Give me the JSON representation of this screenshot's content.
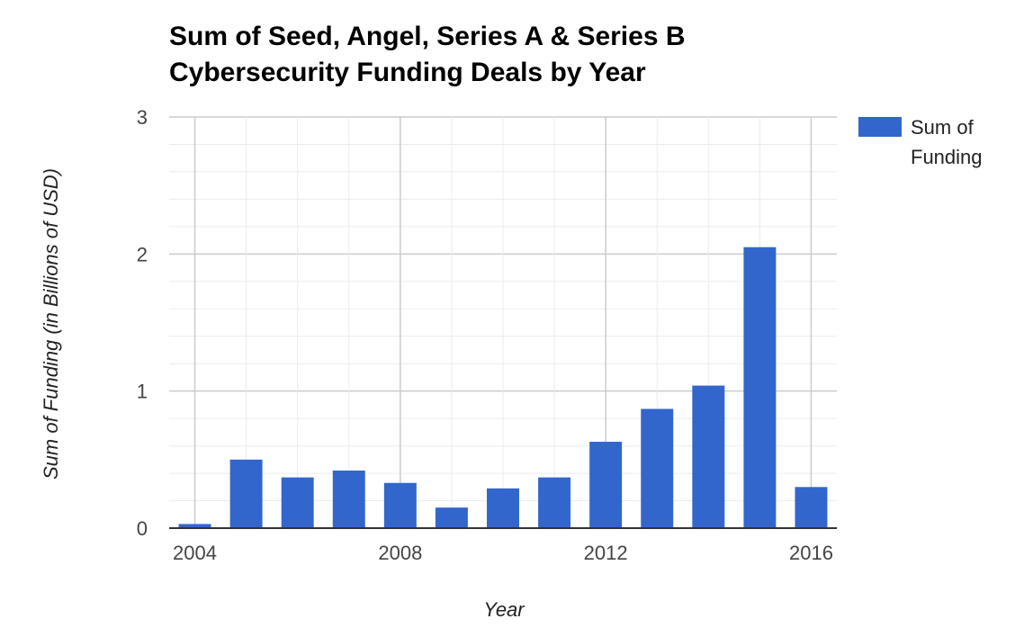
{
  "chart_data": {
    "type": "bar",
    "title_lines": [
      "Sum of Seed, Angel, Series A & Series B",
      "Cybersecurity Funding Deals by Year"
    ],
    "xlabel": "Year",
    "ylabel": "Sum of Funding (in Billions of USD)",
    "x_tick_labels": [
      "2004",
      "2008",
      "2012",
      "2016"
    ],
    "y_tick_labels": [
      "0",
      "1",
      "2",
      "3"
    ],
    "ylim": [
      0,
      3
    ],
    "grid": true,
    "legend_position": "right",
    "series": [
      {
        "name_lines": [
          "Sum of",
          "Funding"
        ],
        "color": "#3366cc",
        "x": [
          2004,
          2005,
          2006,
          2007,
          2008,
          2009,
          2010,
          2011,
          2012,
          2013,
          2014,
          2015,
          2016
        ],
        "values": [
          0.03,
          0.5,
          0.37,
          0.42,
          0.33,
          0.15,
          0.29,
          0.37,
          0.63,
          0.87,
          1.04,
          2.05,
          0.3
        ]
      }
    ]
  }
}
